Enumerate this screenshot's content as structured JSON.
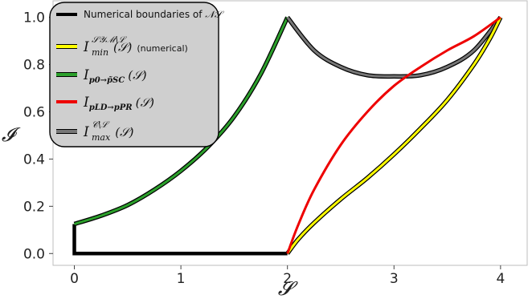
{
  "chart_data": {
    "type": "line",
    "xlabel": "𝓢",
    "ylabel": "𝓘",
    "xlim": [
      -0.2,
      4.25
    ],
    "ylim": [
      -0.05,
      1.07
    ],
    "xticks": [
      "0",
      "1",
      "2",
      "3",
      "4"
    ],
    "yticks": [
      "0.0",
      "0.2",
      "0.4",
      "0.6",
      "0.8",
      "1.0"
    ],
    "grid": false,
    "legend_position": "top-left",
    "series": [
      {
        "name": "Numerical boundaries of 𝒩𝒮",
        "color": "#000000",
        "x": [
          0,
          0,
          2
        ],
        "y": [
          0.125,
          0,
          0
        ]
      },
      {
        "name": "I_min^{𝒮𝒴ℳ\\ℒ}(𝒮)",
        "note": "(numerical)",
        "color": "#ffff00",
        "x": [
          2.0,
          2.1,
          2.25,
          2.5,
          2.75,
          3.0,
          3.25,
          3.5,
          3.75,
          3.9,
          4.0
        ],
        "y": [
          0.0,
          0.06,
          0.13,
          0.23,
          0.32,
          0.42,
          0.53,
          0.65,
          0.8,
          0.91,
          1.0
        ]
      },
      {
        "name": "I_{p0→p̃SC}(𝒮)",
        "color": "#2ca02c",
        "x": [
          0.0,
          0.25,
          0.5,
          0.75,
          1.0,
          1.25,
          1.5,
          1.75,
          2.0
        ],
        "y": [
          0.125,
          0.16,
          0.205,
          0.27,
          0.35,
          0.45,
          0.58,
          0.76,
          1.0
        ]
      },
      {
        "name": "I_{pLD→pPR}(𝒮)",
        "color": "#ee0000",
        "x": [
          2.0,
          2.1,
          2.25,
          2.5,
          2.75,
          3.0,
          3.25,
          3.5,
          3.75,
          4.0
        ],
        "y": [
          0.0,
          0.12,
          0.27,
          0.46,
          0.6,
          0.71,
          0.79,
          0.86,
          0.92,
          1.0
        ]
      },
      {
        "name": "I_max^{𝒞\\ℒ}(𝒮)",
        "color": "#777777",
        "x": [
          2.0,
          2.25,
          2.5,
          2.75,
          3.0,
          3.25,
          3.5,
          3.75,
          4.0
        ],
        "y": [
          1.0,
          0.86,
          0.79,
          0.755,
          0.75,
          0.755,
          0.79,
          0.86,
          1.0
        ]
      }
    ],
    "legend": [
      {
        "main": "Numerical boundaries of ",
        "sym": "𝒩𝒮",
        "color": "#000000"
      },
      {
        "main": "I",
        "sup": "𝒮𝒴ℳ\\ℒ",
        "sub": "min",
        "args": "(𝒮)",
        "note": "(numerical)",
        "color": "#ffff00"
      },
      {
        "main": "I",
        "sub": "p0→p̃SC",
        "args": "(𝒮)",
        "color": "#2ca02c"
      },
      {
        "main": "I",
        "sub": "pLD→pPR",
        "args": "(𝒮)",
        "color": "#ee0000"
      },
      {
        "main": "I",
        "sup": "𝒞\\ℒ",
        "sub": "max",
        "args": "(𝒮)",
        "color": "#777777"
      }
    ]
  }
}
